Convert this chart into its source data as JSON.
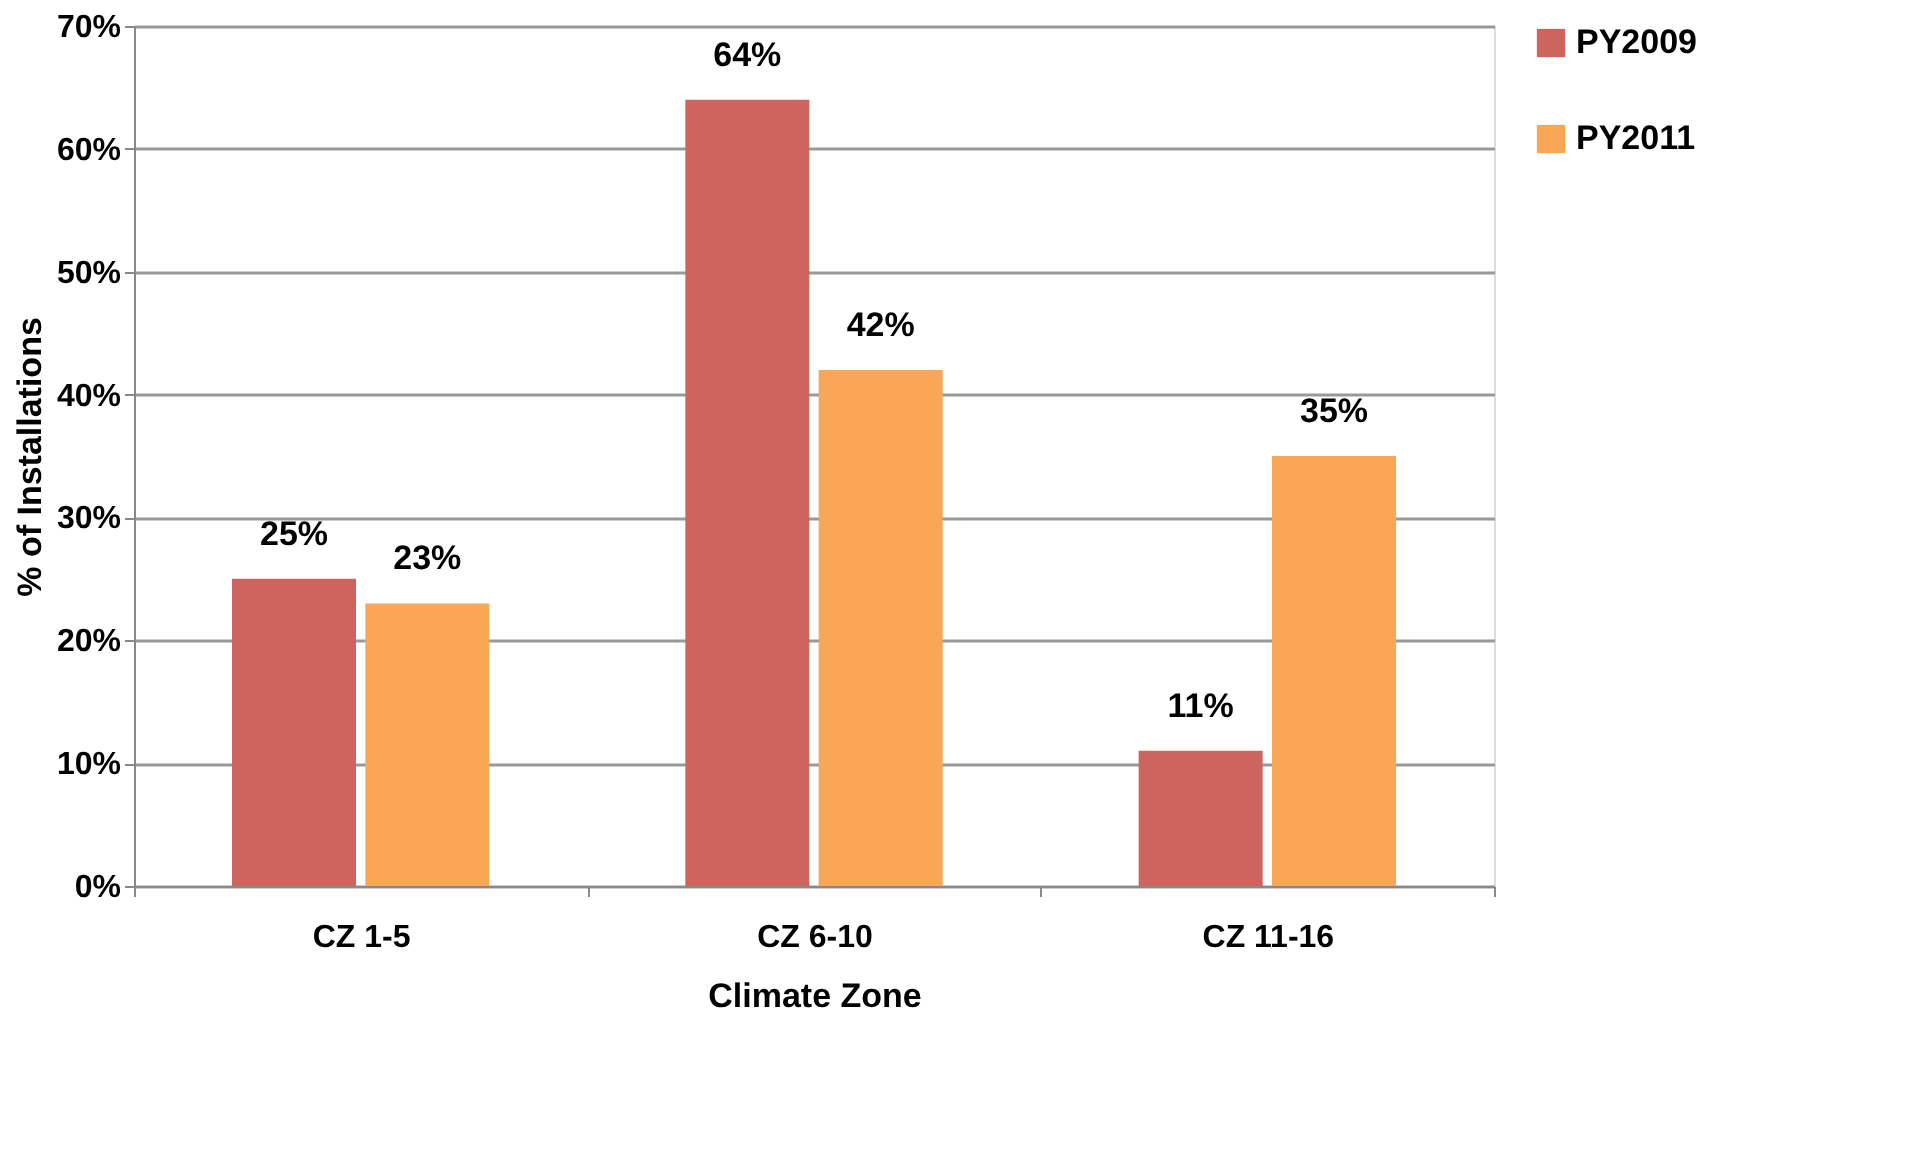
{
  "chart_data": {
    "type": "bar",
    "xlabel": "Climate Zone",
    "ylabel": "% of Installations",
    "categories": [
      "CZ 1-5",
      "CZ 6-10",
      "CZ 11-16"
    ],
    "series": [
      {
        "name": "PY2009",
        "color": "#cd655e",
        "values": [
          25,
          64,
          11
        ],
        "value_labels": [
          "25%",
          "64%",
          "11%"
        ]
      },
      {
        "name": "PY2011",
        "color": "#f9a756",
        "values": [
          23,
          42,
          35
        ],
        "value_labels": [
          "23%",
          "42%",
          "35%"
        ]
      }
    ],
    "ylim": [
      0,
      70
    ],
    "yticks": [
      {
        "value": 0,
        "label": "0%"
      },
      {
        "value": 10,
        "label": "10%"
      },
      {
        "value": 20,
        "label": "20%"
      },
      {
        "value": 30,
        "label": "30%"
      },
      {
        "value": 40,
        "label": "40%"
      },
      {
        "value": 50,
        "label": "50%"
      },
      {
        "value": 60,
        "label": "60%"
      },
      {
        "value": 70,
        "label": "70%"
      }
    ],
    "grid": "y",
    "legend": "right"
  }
}
